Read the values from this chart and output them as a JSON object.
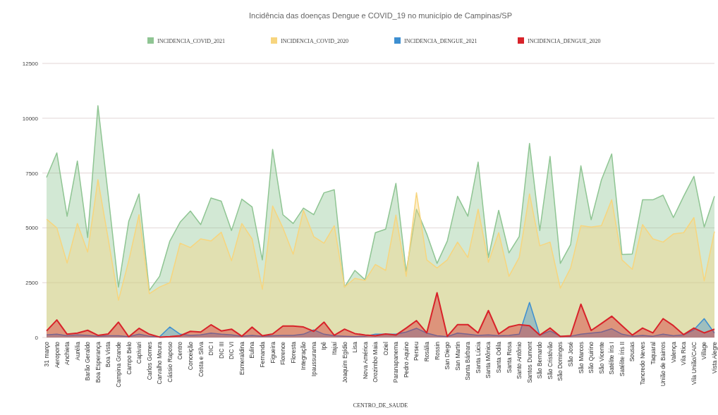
{
  "chart_data": {
    "type": "area",
    "title": "Incidência das doenças Dengue e COVID_19 no município de Campinas/SP",
    "xlabel": "CENTRO_DE_SAUDE",
    "categories": [
      "31 março",
      "Aeroporto",
      "Anchieta",
      "Aurélia",
      "Barão Geraldo",
      "Boa Esperança",
      "Boa Vista",
      "Campina Grande",
      "Campo Belo",
      "Capivari",
      "Carlos Gomes",
      "Carvalho Moura",
      "Cássio Raposo",
      "Centro",
      "Conceição",
      "Costa e Silva",
      "DIC I",
      "DIC III",
      "DIC VI",
      "Esmeraldina",
      "Eulina",
      "Fernanda",
      "Figueira",
      "Florence",
      "Floresta",
      "Integração",
      "Ipaussurama",
      "Ipê",
      "Itajaí",
      "Joaquim Egídio",
      "Lisa",
      "Nova América",
      "Orozimbo Maia",
      "Oziel",
      "Paranapanema",
      "Pedro Aquino",
      "Perseu",
      "Rosália",
      "Rossin",
      "San Diego",
      "San Martin",
      "Santa Bárbara",
      "Santa Lúcia",
      "Santa Mônica",
      "Santa Odila",
      "Santa Rosa",
      "Santo Antônio",
      "Santos Dumont",
      "São Bernardo",
      "São Cristóvão",
      "São Domingos",
      "São José",
      "São Marcos",
      "São Quirino",
      "São Vicente",
      "Satélite Íris I",
      "Satélite Íris II",
      "Sousas",
      "Tancredo Neves",
      "Taquaral",
      "União de Bairros",
      "Valença",
      "Vila Rica",
      "Vila União/CAIC",
      "Village",
      "Vista Alegre"
    ],
    "series": [
      {
        "name": "INCIDENCIA_COVID_2021",
        "color": "#8fc593",
        "values": [
          7300,
          8420,
          5530,
          8050,
          4560,
          10570,
          6500,
          2300,
          5300,
          6550,
          2150,
          2790,
          4400,
          5260,
          5770,
          5150,
          6360,
          6220,
          4880,
          6310,
          5960,
          3540,
          8580,
          5600,
          5200,
          5900,
          5600,
          6600,
          6740,
          2300,
          3060,
          2630,
          4780,
          4940,
          7030,
          3000,
          5850,
          4720,
          3380,
          4400,
          6440,
          5530,
          8000,
          3650,
          5800,
          3860,
          4610,
          8850,
          4880,
          8260,
          3380,
          4240,
          7830,
          5370,
          7190,
          8370,
          3780,
          3810,
          6280,
          6280,
          6490,
          5470,
          6440,
          7350,
          5040,
          6440
        ]
      },
      {
        "name": "INCIDENCIA_COVID_2020",
        "color": "#f7d57e",
        "values": [
          5400,
          5000,
          3400,
          5200,
          3900,
          7200,
          4500,
          1700,
          3500,
          5600,
          2000,
          2300,
          2500,
          4300,
          4100,
          4500,
          4400,
          4800,
          3500,
          5200,
          4500,
          2200,
          6000,
          5000,
          3800,
          5800,
          4600,
          4300,
          5100,
          2300,
          2700,
          2600,
          3330,
          3060,
          5580,
          2790,
          6600,
          3540,
          3170,
          3540,
          4350,
          3650,
          5850,
          3430,
          4780,
          2790,
          3650,
          6550,
          4180,
          4350,
          2250,
          3170,
          5100,
          5040,
          5100,
          6280,
          3540,
          3110,
          5150,
          4500,
          4350,
          4720,
          4780,
          5470,
          2580,
          4830
        ]
      },
      {
        "name": "INCIDENCIA_DENGUE_2021",
        "color": "#3d8fd1",
        "values": [
          120,
          150,
          80,
          120,
          100,
          60,
          80,
          80,
          40,
          150,
          60,
          30,
          480,
          150,
          100,
          120,
          200,
          150,
          120,
          60,
          100,
          60,
          80,
          100,
          100,
          150,
          350,
          150,
          80,
          60,
          40,
          60,
          150,
          150,
          150,
          250,
          420,
          200,
          80,
          40,
          200,
          150,
          100,
          120,
          80,
          100,
          150,
          1600,
          100,
          300,
          60,
          60,
          150,
          200,
          250,
          400,
          150,
          60,
          100,
          60,
          150,
          80,
          120,
          350,
          860,
          200
        ]
      },
      {
        "name": "INCIDENCIA_DENGUE_2020",
        "color": "#d8232a",
        "values": [
          300,
          800,
          150,
          200,
          330,
          100,
          160,
          700,
          30,
          420,
          150,
          20,
          40,
          80,
          280,
          250,
          580,
          300,
          380,
          60,
          470,
          80,
          160,
          520,
          520,
          480,
          280,
          700,
          100,
          380,
          180,
          110,
          80,
          160,
          110,
          430,
          770,
          210,
          2040,
          50,
          590,
          590,
          210,
          1230,
          160,
          480,
          590,
          540,
          110,
          430,
          50,
          80,
          1520,
          320,
          640,
          970,
          540,
          110,
          430,
          210,
          860,
          540,
          130,
          430,
          210,
          380
        ]
      }
    ],
    "ylim": [
      0,
      12500
    ],
    "yticks": [
      0,
      2500,
      5000,
      7500,
      10000,
      12500
    ],
    "grid": "y",
    "legend": "top"
  }
}
